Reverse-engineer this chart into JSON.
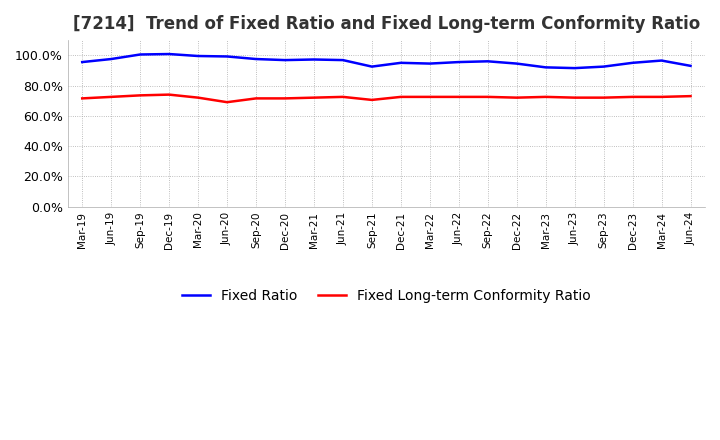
{
  "title": "[7214]  Trend of Fixed Ratio and Fixed Long-term Conformity Ratio",
  "x_labels": [
    "Mar-19",
    "Jun-19",
    "Sep-19",
    "Dec-19",
    "Mar-20",
    "Jun-20",
    "Sep-20",
    "Dec-20",
    "Mar-21",
    "Jun-21",
    "Sep-21",
    "Dec-21",
    "Mar-22",
    "Jun-22",
    "Sep-22",
    "Dec-22",
    "Mar-23",
    "Jun-23",
    "Sep-23",
    "Dec-23",
    "Mar-24",
    "Jun-24"
  ],
  "fixed_ratio": [
    95.5,
    97.5,
    100.5,
    100.8,
    99.5,
    99.2,
    97.5,
    96.8,
    97.2,
    96.8,
    92.5,
    95.0,
    94.5,
    95.5,
    96.0,
    94.5,
    92.0,
    91.5,
    92.5,
    95.0,
    96.5,
    93.0
  ],
  "fixed_lt_ratio": [
    71.5,
    72.5,
    73.5,
    74.0,
    72.0,
    69.0,
    71.5,
    71.5,
    72.0,
    72.5,
    70.5,
    72.5,
    72.5,
    72.5,
    72.5,
    72.0,
    72.5,
    72.0,
    72.0,
    72.5,
    72.5,
    73.0
  ],
  "fixed_ratio_color": "#0000FF",
  "fixed_lt_ratio_color": "#FF0000",
  "ylim": [
    0,
    110
  ],
  "yticks": [
    0,
    20,
    40,
    60,
    80,
    100
  ],
  "background_color": "#ffffff",
  "grid_color": "#aaaaaa",
  "title_fontsize": 12,
  "legend_fontsize": 10,
  "line_width": 1.8
}
